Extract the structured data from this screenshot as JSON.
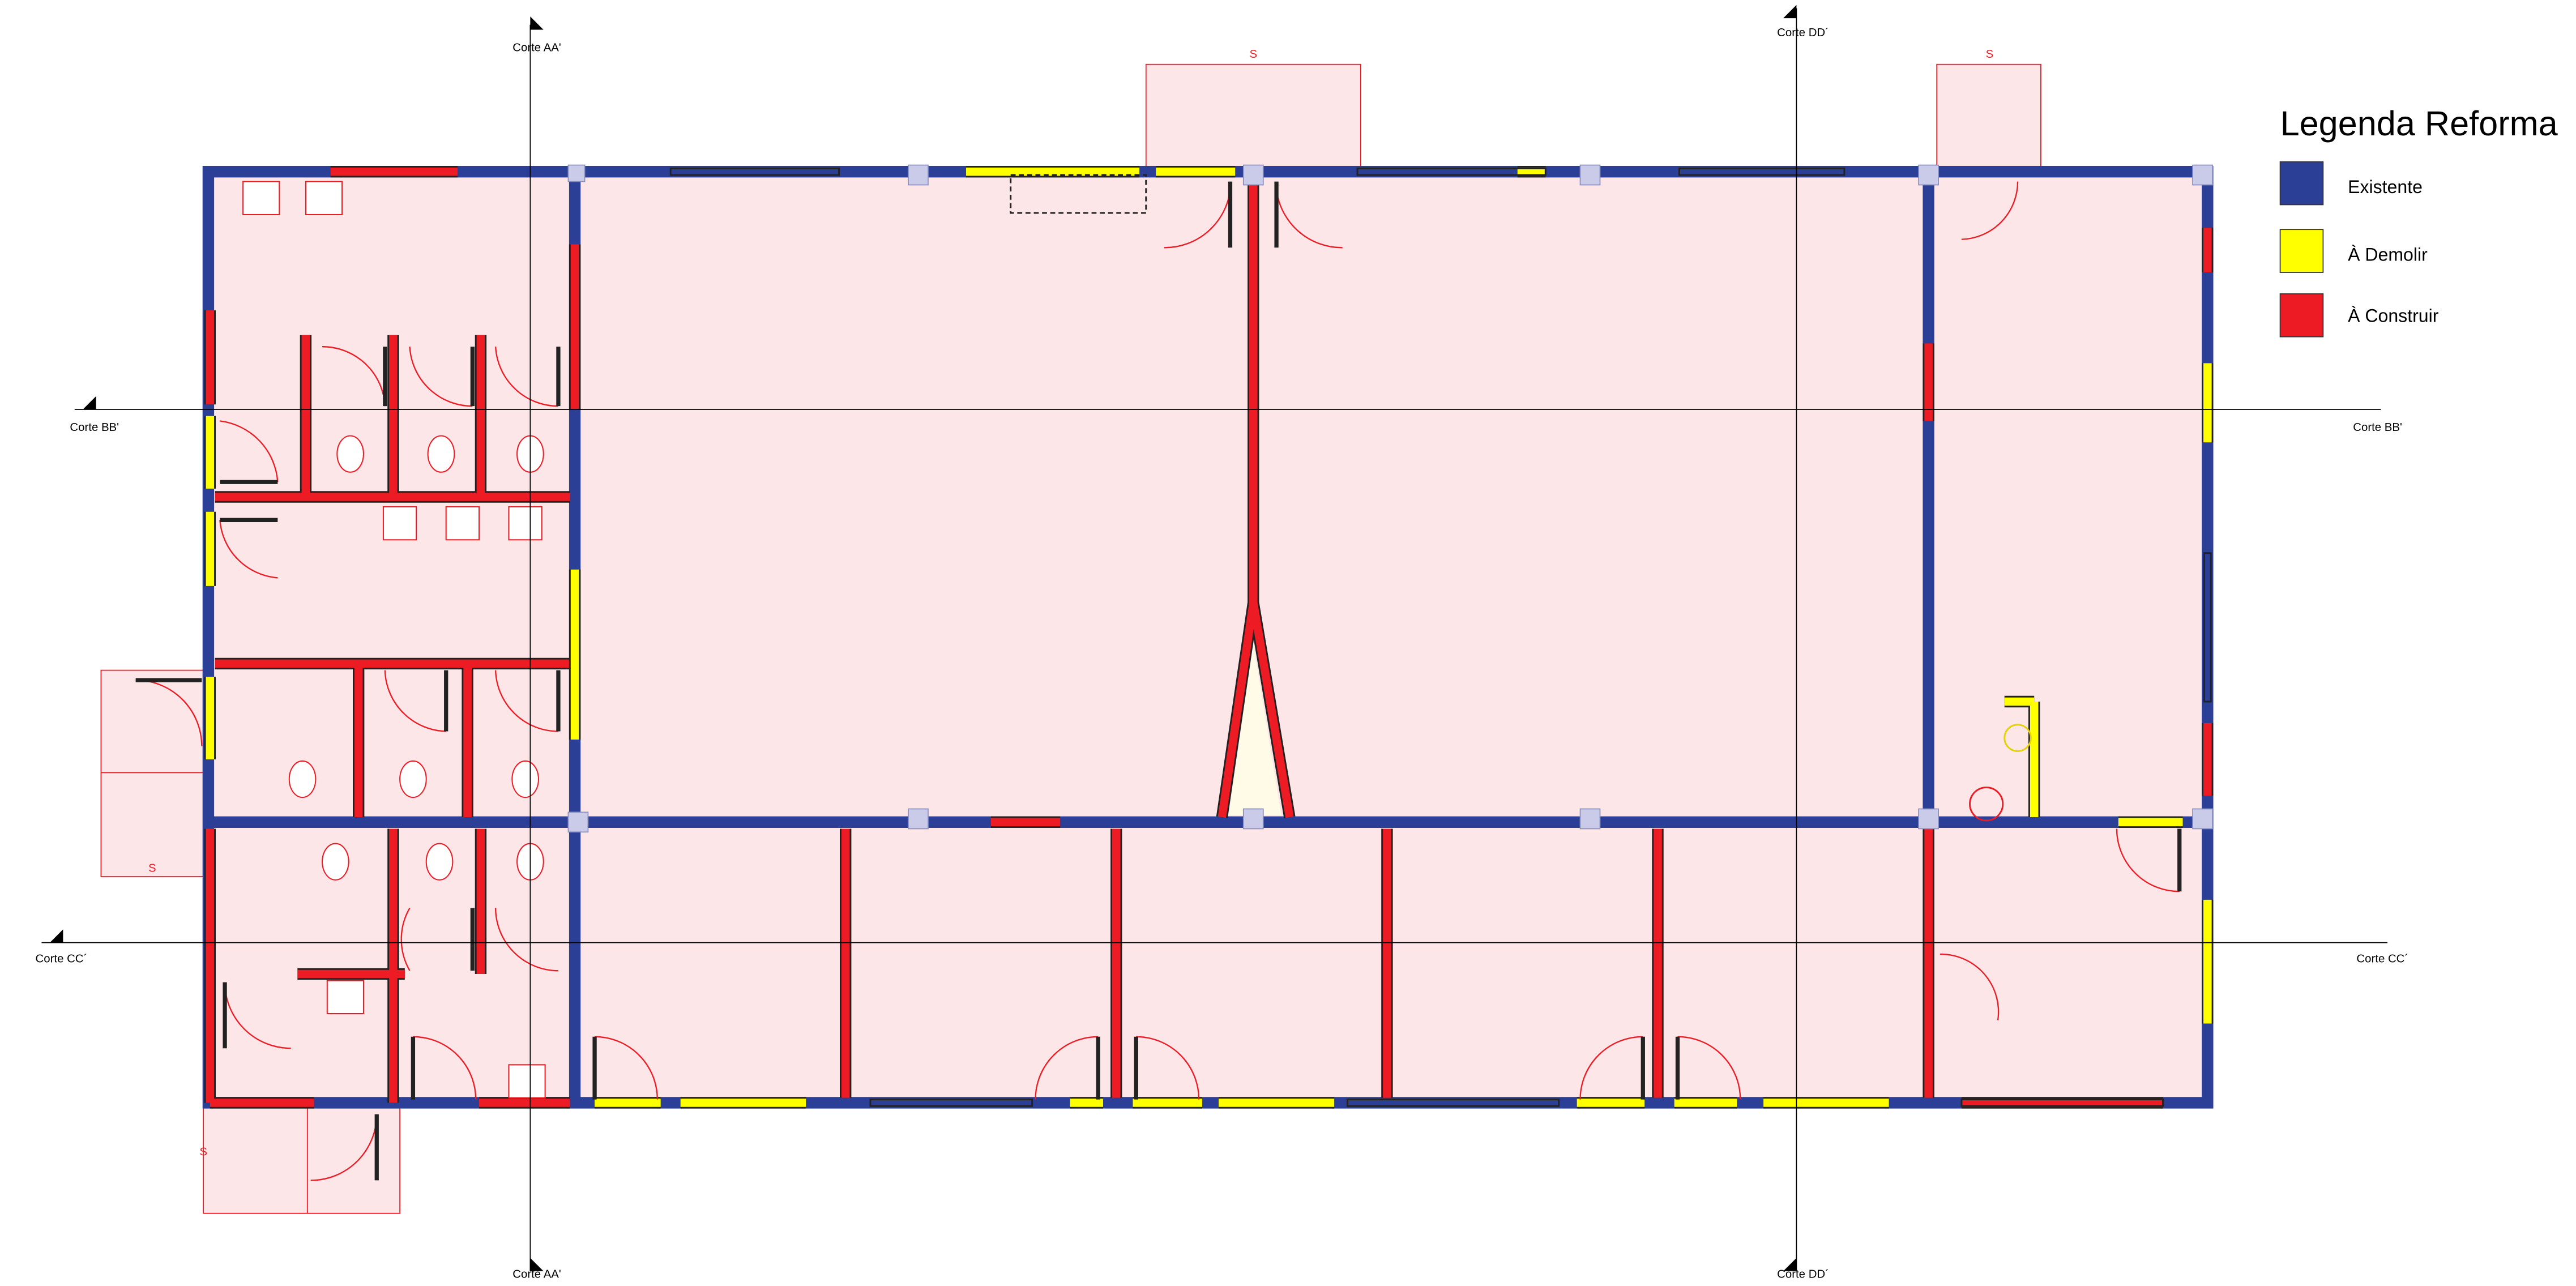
{
  "legend": {
    "title": "Legenda Reforma",
    "items": [
      {
        "label": "Existente",
        "color": "#2b3f97"
      },
      {
        "label": "À Demolir",
        "color": "#ffff00"
      },
      {
        "label": "À Construir",
        "color": "#ed1c24"
      }
    ]
  },
  "section_cuts": [
    {
      "labels": [
        "Corte AA'",
        "Corte AA'"
      ]
    },
    {
      "labels": [
        "Corte BB'",
        "Corte BB'"
      ]
    },
    {
      "labels": [
        "Corte CC´",
        "Corte CC´"
      ]
    },
    {
      "labels": [
        "Corte DD´",
        "Corte DD´"
      ]
    }
  ],
  "exit_labels": [
    "S",
    "S",
    "S",
    "S"
  ]
}
